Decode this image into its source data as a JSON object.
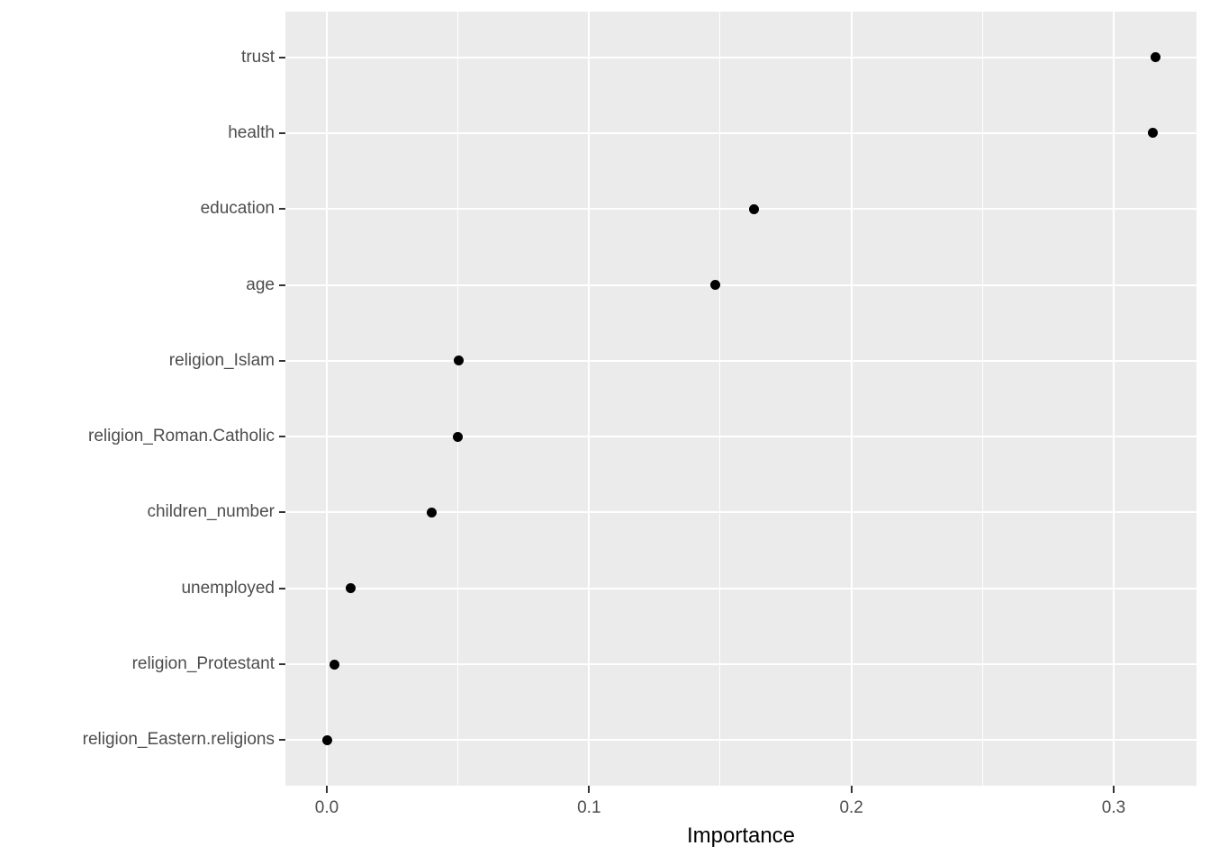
{
  "chart_data": {
    "type": "scatter",
    "subtype": "variable-importance-dotplot",
    "title": "",
    "xlabel": "Importance",
    "ylabel": "",
    "categories": [
      "trust",
      "health",
      "education",
      "age",
      "religion_Islam",
      "religion_Roman.Catholic",
      "children_number",
      "unemployed",
      "religion_Protestant",
      "religion_Eastern.religions"
    ],
    "values": [
      0.316,
      0.315,
      0.163,
      0.148,
      0.0502,
      0.05,
      0.04,
      0.009,
      0.003,
      0.0
    ],
    "xlim": [
      -0.016,
      0.332
    ],
    "x_major_ticks": [
      0.0,
      0.1,
      0.2,
      0.3
    ],
    "x_tick_labels": [
      "0.0",
      "0.1",
      "0.2",
      "0.3"
    ],
    "x_minor_ticks": [
      0.05,
      0.15,
      0.25
    ],
    "legend_position": "none",
    "grid": "white major and minor vertical lines, white major horizontal lines on grey panel",
    "colors": {
      "panel_background": "#EBEBEB",
      "gridline": "#FFFFFF",
      "point": "#000000",
      "axis_text": "#4D4D4D",
      "axis_title": "#000000",
      "tick_mark": "#333333",
      "figure_background": "#FFFFFF"
    }
  }
}
